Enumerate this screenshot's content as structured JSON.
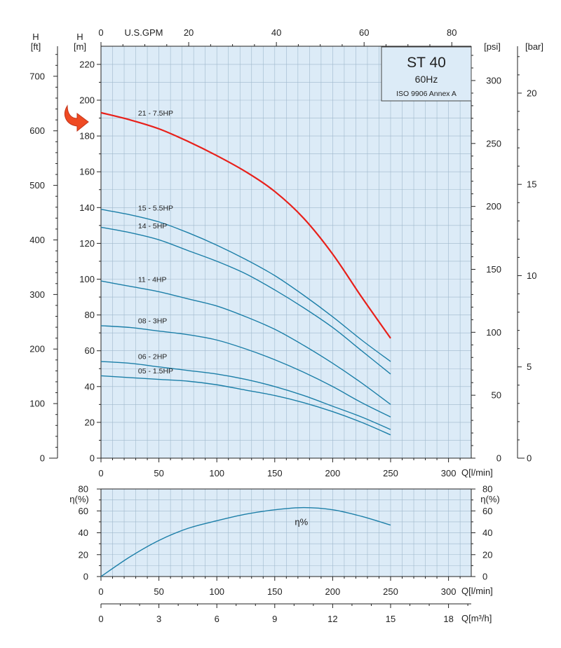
{
  "info_box": {
    "title": "ST 40",
    "frequency": "60Hz",
    "standard": "ISO 9906 Annex A"
  },
  "colors": {
    "plot_bg": "#dcebf7",
    "grid": "#9fb8cc",
    "curve": "#1c7fa8",
    "highlight": "#e8201a",
    "arrow": "#ef4a23",
    "axis": "#222222"
  },
  "units": {
    "h_ft": [
      "H",
      "[ft]"
    ],
    "h_m": [
      "H",
      "[m]"
    ],
    "psi": "[psi]",
    "bar": "[bar]",
    "gpm": "U.S.GPM",
    "q_lmin": "Q[l/min]",
    "q_lmin_eff": "Q[l/min]",
    "q_m3h": "Q[m³/h]",
    "eta_left": "η(%)",
    "eta_right": "η(%)"
  },
  "ticks": {
    "h_m": [
      "0",
      "20",
      "40",
      "60",
      "80",
      "100",
      "120",
      "140",
      "160",
      "180",
      "200",
      "220"
    ],
    "h_ft": [
      "0",
      "100",
      "200",
      "300",
      "400",
      "500",
      "600",
      "700"
    ],
    "psi": [
      "0",
      "50",
      "100",
      "150",
      "200",
      "250",
      "300"
    ],
    "bar": [
      "0",
      "5",
      "10",
      "15",
      "20"
    ],
    "gpm": [
      "0",
      "20",
      "40",
      "60",
      "80"
    ],
    "q_lmin": [
      "0",
      "50",
      "100",
      "150",
      "200",
      "250",
      "300"
    ],
    "q_lmin_eff": [
      "0",
      "50",
      "100",
      "150",
      "200",
      "250",
      "300"
    ],
    "q_m3h": [
      "0",
      "3",
      "6",
      "9",
      "12",
      "15",
      "18"
    ],
    "eta_left": [
      "0",
      "20",
      "40",
      "60",
      "80"
    ],
    "eta_right": [
      "0",
      "20",
      "40",
      "60",
      "80"
    ]
  },
  "chart_data": [
    {
      "type": "line",
      "title": "ST 40",
      "subtitle": "60Hz",
      "xlabel": "Q[l/min]",
      "ylabel": "H [m]",
      "xlim": [
        0,
        320
      ],
      "ylim": [
        0,
        230
      ],
      "grid": true,
      "series": [
        {
          "name": "21 - 7.5HP",
          "x": [
            0,
            25,
            50,
            75,
            100,
            125,
            150,
            175,
            200,
            225,
            250
          ],
          "values": [
            193,
            189,
            184,
            177,
            169,
            160,
            149,
            134,
            114,
            90,
            67
          ],
          "highlight": true
        },
        {
          "name": "15 - 5.5HP",
          "x": [
            0,
            25,
            50,
            75,
            100,
            125,
            150,
            175,
            200,
            225,
            250
          ],
          "values": [
            139,
            136,
            132,
            126,
            119,
            111,
            102,
            91,
            79,
            66,
            54
          ]
        },
        {
          "name": "14 - 5HP",
          "x": [
            0,
            25,
            50,
            75,
            100,
            125,
            150,
            175,
            200,
            225,
            250
          ],
          "values": [
            129,
            126,
            122,
            116,
            110,
            103,
            94,
            84,
            73,
            60,
            47
          ]
        },
        {
          "name": "11 - 4HP",
          "x": [
            0,
            25,
            50,
            75,
            100,
            125,
            150,
            175,
            200,
            225,
            250
          ],
          "values": [
            99,
            96,
            93,
            89,
            85,
            79,
            72,
            63,
            53,
            42,
            30
          ]
        },
        {
          "name": "08 - 3HP",
          "x": [
            0,
            25,
            50,
            75,
            100,
            125,
            150,
            175,
            200,
            225,
            250
          ],
          "values": [
            74,
            73,
            71,
            69,
            66,
            61,
            55,
            48,
            40,
            31,
            23
          ]
        },
        {
          "name": "06 - 2HP",
          "x": [
            0,
            25,
            50,
            75,
            100,
            125,
            150,
            175,
            200,
            225,
            250
          ],
          "values": [
            54,
            53,
            51,
            49,
            47,
            44,
            40,
            35,
            29,
            23,
            16
          ]
        },
        {
          "name": "05 - 1.5HP",
          "x": [
            0,
            25,
            50,
            75,
            100,
            125,
            150,
            175,
            200,
            225,
            250
          ],
          "values": [
            46,
            45,
            44,
            43,
            41,
            38,
            35,
            31,
            26,
            20,
            13
          ]
        }
      ]
    },
    {
      "type": "line",
      "xlabel": "Q[l/min]",
      "ylabel": "η(%)",
      "xlim": [
        0,
        320
      ],
      "ylim": [
        0,
        80
      ],
      "grid": true,
      "series": [
        {
          "name": "η%",
          "x": [
            0,
            25,
            50,
            75,
            100,
            125,
            150,
            175,
            200,
            225,
            250
          ],
          "values": [
            0,
            18,
            33,
            44,
            51,
            57,
            61,
            63,
            61,
            55,
            47
          ]
        }
      ]
    }
  ]
}
